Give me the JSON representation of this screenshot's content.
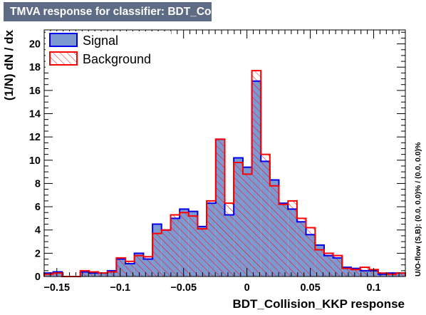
{
  "title": "TMVA response for classifier: BDT_Collision_KKP",
  "colors": {
    "title_bg": "#5e6b84",
    "signal_fill": "#7d99d1",
    "signal_line": "#0000ee",
    "background_line": "#ff0000"
  },
  "chart_data": {
    "type": "histogram",
    "xlabel": "BDT_Collision_KKP response",
    "ylabel": "(1/N) dN / dx",
    "side_label": "U/O-flow (S,B): (0.0, 0.0)% / (0.0, 0.0)%",
    "xlim": [
      -0.16,
      0.125
    ],
    "ylim": [
      0,
      21.2
    ],
    "x_ticks": [
      -0.15,
      -0.1,
      -0.05,
      0,
      0.05,
      0.1
    ],
    "x_tick_labels": [
      "−0.15",
      "−0.1",
      "−0.05",
      "0",
      "0.05",
      "0.1"
    ],
    "y_ticks": [
      0,
      2,
      4,
      6,
      8,
      10,
      12,
      14,
      16,
      18,
      20
    ],
    "y_tick_labels": [
      "0",
      "2",
      "4",
      "6",
      "8",
      "10",
      "12",
      "14",
      "16",
      "18",
      "20"
    ],
    "bin_edges": [
      -0.16,
      -0.1529,
      -0.1458,
      -0.1386,
      -0.1315,
      -0.1244,
      -0.1172,
      -0.1101,
      -0.103,
      -0.0959,
      -0.0888,
      -0.0816,
      -0.0745,
      -0.0674,
      -0.0602,
      -0.0531,
      -0.046,
      -0.0389,
      -0.0318,
      -0.0246,
      -0.0175,
      -0.0104,
      -0.0032,
      0.0039,
      0.011,
      0.0181,
      0.0252,
      0.0324,
      0.0395,
      0.0466,
      0.0538,
      0.0609,
      0.068,
      0.0751,
      0.0822,
      0.0894,
      0.0965,
      0.1036,
      0.1108,
      0.1179,
      0.125
    ],
    "legend": [
      {
        "name": "Signal",
        "style": "filled"
      },
      {
        "name": "Background",
        "style": "hatched"
      }
    ],
    "series": [
      {
        "name": "Signal",
        "values": [
          0.3,
          0.4,
          0.0,
          0.0,
          0.4,
          0.3,
          0.3,
          0.5,
          1.5,
          1.1,
          2.0,
          1.5,
          4.5,
          4.0,
          5.0,
          5.8,
          5.6,
          4.3,
          6.3,
          11.8,
          5.3,
          10.2,
          9.4,
          16.8,
          9.9,
          8.3,
          6.3,
          5.8,
          4.7,
          3.6,
          2.7,
          1.8,
          1.6,
          0.8,
          0.7,
          0.5,
          0.5,
          0.2,
          0.3,
          0.3
        ]
      },
      {
        "name": "Background",
        "values": [
          0.2,
          0.3,
          0.0,
          0.0,
          0.5,
          0.4,
          0.3,
          0.4,
          1.6,
          1.3,
          1.8,
          1.7,
          3.7,
          4.0,
          5.3,
          5.5,
          5.2,
          4.1,
          6.5,
          11.8,
          6.3,
          9.8,
          8.8,
          17.7,
          10.5,
          7.8,
          6.2,
          6.5,
          5.0,
          4.2,
          2.3,
          2.0,
          1.8,
          0.7,
          0.6,
          0.8,
          0.6,
          0.3,
          0.2,
          0.3
        ]
      }
    ]
  }
}
